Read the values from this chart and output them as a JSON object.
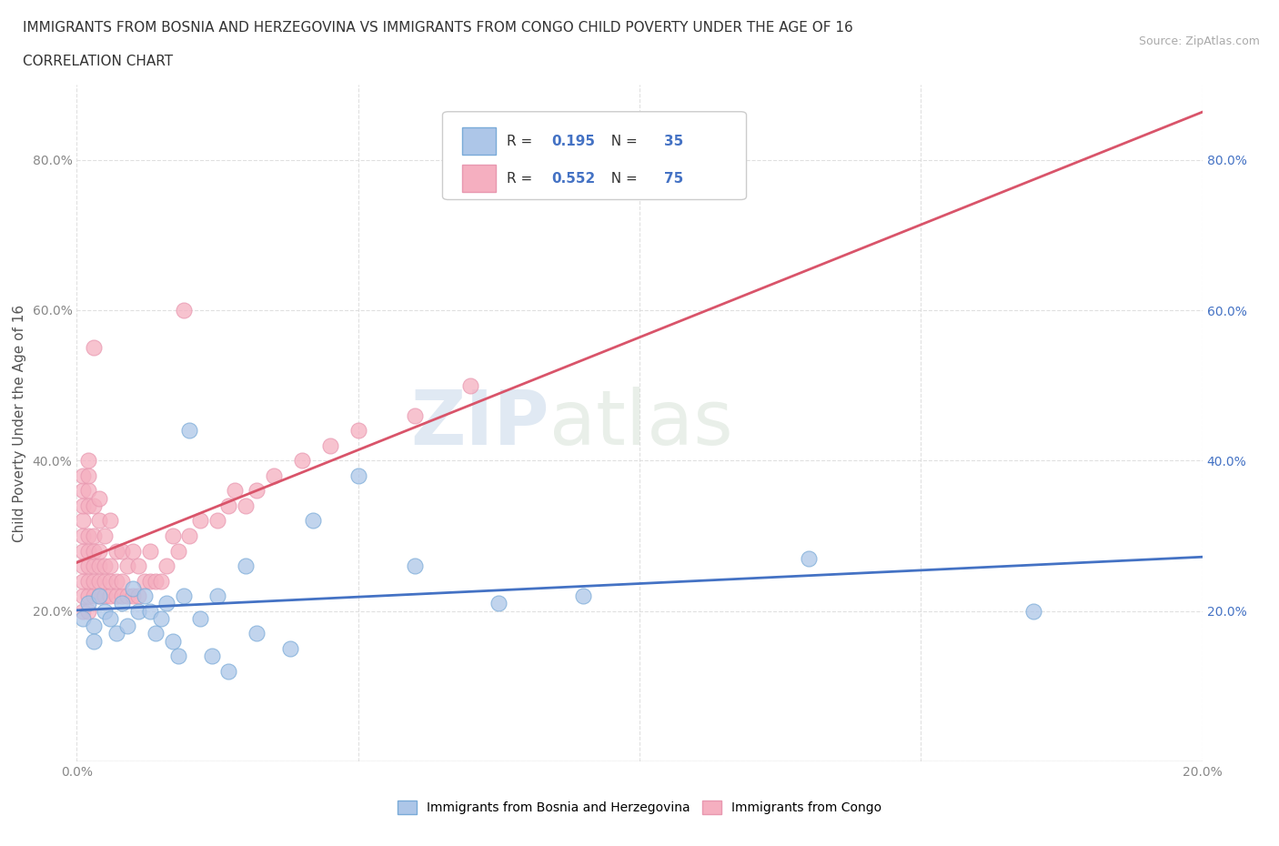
{
  "title_line1": "IMMIGRANTS FROM BOSNIA AND HERZEGOVINA VS IMMIGRANTS FROM CONGO CHILD POVERTY UNDER THE AGE OF 16",
  "title_line2": "CORRELATION CHART",
  "source_text": "Source: ZipAtlas.com",
  "ylabel": "Child Poverty Under the Age of 16",
  "watermark_zip": "ZIP",
  "watermark_atlas": "atlas",
  "xlim": [
    0.0,
    0.2
  ],
  "ylim": [
    0.0,
    0.9
  ],
  "x_ticks": [
    0.0,
    0.05,
    0.1,
    0.15,
    0.2
  ],
  "x_tick_labels": [
    "0.0%",
    "",
    "",
    "",
    "20.0%"
  ],
  "y_ticks": [
    0.0,
    0.2,
    0.4,
    0.6,
    0.8
  ],
  "y_tick_labels_left": [
    "",
    "20.0%",
    "40.0%",
    "60.0%",
    "80.0%"
  ],
  "y_tick_labels_right": [
    "",
    "20.0%",
    "40.0%",
    "60.0%",
    "80.0%"
  ],
  "legend_R_bosnia": "0.195",
  "legend_N_bosnia": "35",
  "legend_R_congo": "0.552",
  "legend_N_congo": "75",
  "color_bosnia": "#adc6e8",
  "color_congo": "#f5afc0",
  "line_color_bosnia": "#4472c4",
  "line_color_congo": "#d9546a",
  "bosnia_scatter_x": [
    0.001,
    0.002,
    0.003,
    0.003,
    0.004,
    0.005,
    0.006,
    0.007,
    0.008,
    0.009,
    0.01,
    0.011,
    0.012,
    0.013,
    0.014,
    0.015,
    0.016,
    0.017,
    0.018,
    0.019,
    0.02,
    0.022,
    0.024,
    0.025,
    0.027,
    0.03,
    0.032,
    0.038,
    0.042,
    0.05,
    0.06,
    0.075,
    0.09,
    0.13,
    0.17
  ],
  "bosnia_scatter_y": [
    0.19,
    0.21,
    0.18,
    0.16,
    0.22,
    0.2,
    0.19,
    0.17,
    0.21,
    0.18,
    0.23,
    0.2,
    0.22,
    0.2,
    0.17,
    0.19,
    0.21,
    0.16,
    0.14,
    0.22,
    0.44,
    0.19,
    0.14,
    0.22,
    0.12,
    0.26,
    0.17,
    0.15,
    0.32,
    0.38,
    0.26,
    0.21,
    0.22,
    0.27,
    0.2
  ],
  "congo_scatter_x": [
    0.001,
    0.001,
    0.001,
    0.001,
    0.001,
    0.001,
    0.001,
    0.001,
    0.001,
    0.001,
    0.002,
    0.002,
    0.002,
    0.002,
    0.002,
    0.002,
    0.002,
    0.002,
    0.002,
    0.002,
    0.003,
    0.003,
    0.003,
    0.003,
    0.003,
    0.003,
    0.003,
    0.004,
    0.004,
    0.004,
    0.004,
    0.004,
    0.004,
    0.005,
    0.005,
    0.005,
    0.005,
    0.006,
    0.006,
    0.006,
    0.006,
    0.007,
    0.007,
    0.007,
    0.008,
    0.008,
    0.008,
    0.009,
    0.009,
    0.01,
    0.01,
    0.011,
    0.011,
    0.012,
    0.013,
    0.013,
    0.014,
    0.015,
    0.016,
    0.017,
    0.018,
    0.019,
    0.02,
    0.022,
    0.025,
    0.027,
    0.028,
    0.03,
    0.032,
    0.035,
    0.04,
    0.045,
    0.05,
    0.06,
    0.07
  ],
  "congo_scatter_y": [
    0.2,
    0.22,
    0.24,
    0.26,
    0.28,
    0.3,
    0.32,
    0.34,
    0.36,
    0.38,
    0.2,
    0.22,
    0.24,
    0.26,
    0.28,
    0.3,
    0.34,
    0.36,
    0.38,
    0.4,
    0.22,
    0.24,
    0.26,
    0.28,
    0.3,
    0.34,
    0.55,
    0.22,
    0.24,
    0.26,
    0.28,
    0.32,
    0.35,
    0.22,
    0.24,
    0.26,
    0.3,
    0.22,
    0.24,
    0.26,
    0.32,
    0.22,
    0.24,
    0.28,
    0.22,
    0.24,
    0.28,
    0.22,
    0.26,
    0.22,
    0.28,
    0.22,
    0.26,
    0.24,
    0.24,
    0.28,
    0.24,
    0.24,
    0.26,
    0.3,
    0.28,
    0.6,
    0.3,
    0.32,
    0.32,
    0.34,
    0.36,
    0.34,
    0.36,
    0.38,
    0.4,
    0.42,
    0.44,
    0.46,
    0.5
  ],
  "grid_color": "#dddddd",
  "background_color": "#ffffff",
  "title_fontsize": 11,
  "subtitle_fontsize": 11,
  "source_fontsize": 9,
  "axis_label_fontsize": 11,
  "tick_fontsize": 10,
  "legend_fontsize": 11
}
